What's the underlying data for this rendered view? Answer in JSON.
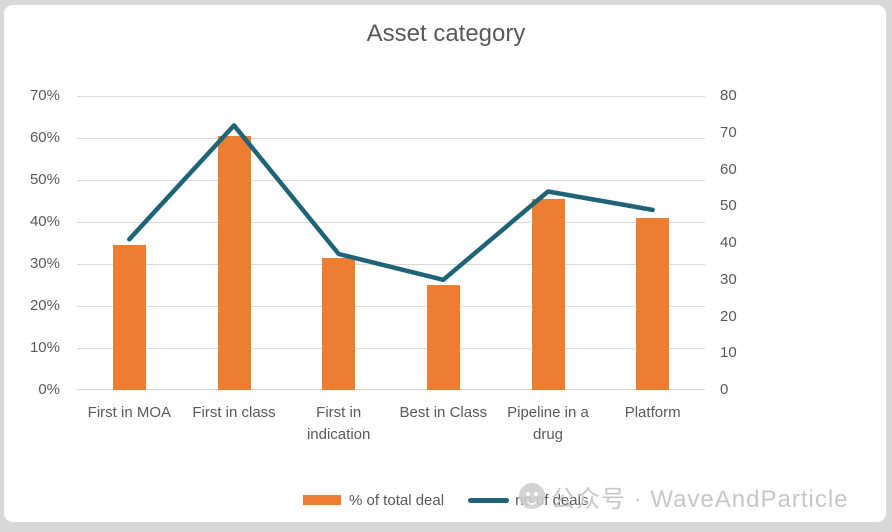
{
  "title": "Asset category",
  "legend": {
    "items": [
      {
        "label": "% of total deal",
        "type": "bar",
        "color": "#ED7D31"
      },
      {
        "label": "no of deals",
        "type": "line",
        "color": "#1F6377"
      }
    ],
    "position": "bottom-center"
  },
  "watermark": {
    "icon": "wechat-icon",
    "text": "公众号 · WaveAndParticle"
  },
  "colors": {
    "bar": "#ED7D31",
    "line": "#1F6377",
    "axis_text": "#595959",
    "gridline": "#d9d9d9",
    "background": "#ffffff"
  },
  "chart_data": {
    "type": "bar",
    "subtype": "combo-bar-line",
    "title": "Asset category",
    "categories": [
      "First in MOA",
      "First in class",
      "First in indication",
      "Best in Class",
      "Pipeline in a drug",
      "Platform"
    ],
    "series": [
      {
        "name": "% of total deal",
        "type": "bar",
        "axis": "left",
        "color": "#ED7D31",
        "unit": "%",
        "values": [
          34.5,
          60.5,
          31.5,
          25,
          45.5,
          41
        ]
      },
      {
        "name": "no of deals",
        "type": "line",
        "axis": "right",
        "color": "#1F6377",
        "unit": "count",
        "values": [
          41,
          72,
          37,
          30,
          54,
          49
        ]
      }
    ],
    "left_axis": {
      "min": 0,
      "max": 70,
      "step": 10,
      "format": "percent",
      "tick_labels": [
        "0%",
        "10%",
        "20%",
        "30%",
        "40%",
        "50%",
        "60%",
        "70%"
      ]
    },
    "right_axis": {
      "min": 0,
      "max": 80,
      "step": 10,
      "format": "number",
      "tick_labels": [
        "0",
        "10",
        "20",
        "30",
        "40",
        "50",
        "60",
        "70",
        "80"
      ]
    },
    "grid": true,
    "legend_position": "bottom"
  }
}
